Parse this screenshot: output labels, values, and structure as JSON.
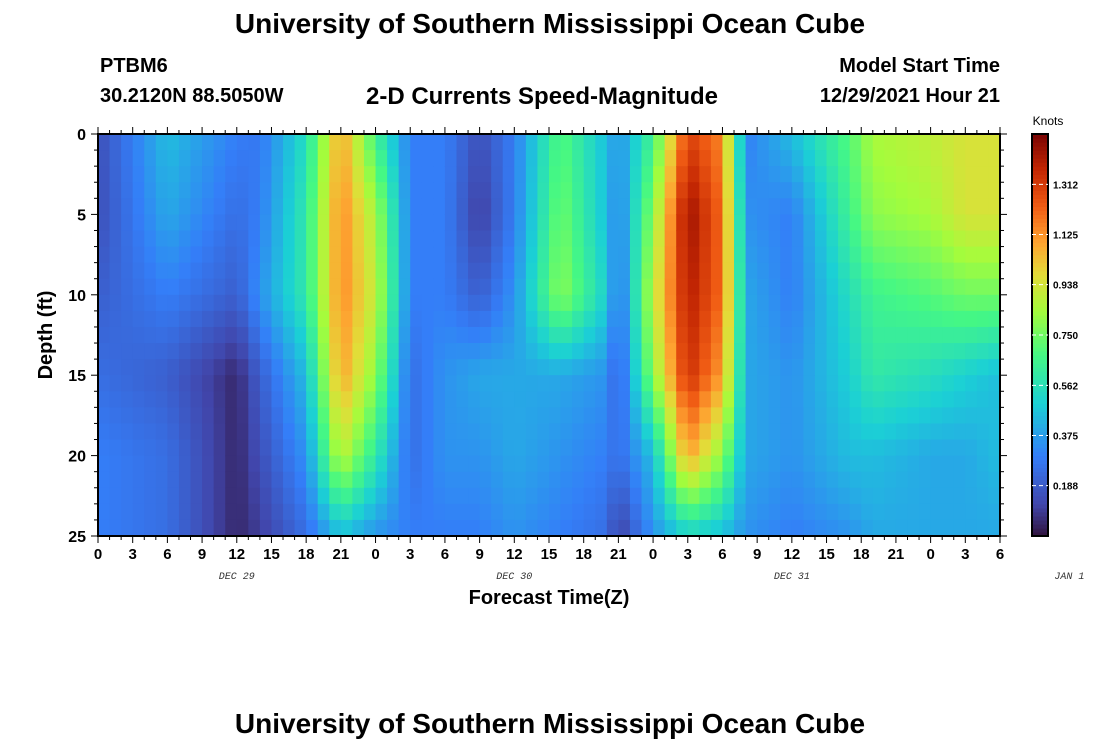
{
  "header": {
    "title": "University of Southern Mississippi Ocean Cube",
    "station": "PTBM6",
    "coords": "30.2120N  88.5050W",
    "subtitle": "2-D Currents Speed-Magnitude",
    "model_start_label": "Model Start Time",
    "model_start_value": "12/29/2021 Hour 21"
  },
  "footer": {
    "title": "University of Southern Mississippi Ocean Cube"
  },
  "chart_data": {
    "type": "heatmap",
    "xlabel": "Forecast Time(Z)",
    "ylabel": "Depth (ft)",
    "x_ticks": [
      "0",
      "3",
      "6",
      "9",
      "12",
      "15",
      "18",
      "21",
      "0",
      "3",
      "6",
      "9",
      "12",
      "15",
      "18",
      "21",
      "0",
      "3",
      "6",
      "9",
      "12",
      "15",
      "18",
      "21",
      "0",
      "3",
      "6"
    ],
    "day_labels": [
      {
        "label": "DEC 29",
        "hour": 12
      },
      {
        "label": "DEC 30",
        "hour": 36
      },
      {
        "label": "DEC 31",
        "hour": 60
      },
      {
        "label": "JAN 1",
        "hour": 84
      }
    ],
    "xlim_hours": [
      0,
      78
    ],
    "y_ticks": [
      "0",
      "5",
      "10",
      "15",
      "20",
      "25"
    ],
    "ylim_ft": [
      0,
      25
    ],
    "colorbar": {
      "label": "Knots",
      "ticks": [
        "1.312",
        "1.125",
        "0.938",
        "0.750",
        "0.562",
        "0.375",
        "0.188"
      ],
      "range": [
        0,
        1.5
      ]
    },
    "grid": false,
    "depth_ft": [
      0,
      5,
      10,
      15,
      20,
      25
    ],
    "time_hours": [
      0,
      6,
      12,
      14,
      18,
      21,
      24,
      27,
      30,
      33,
      36,
      40,
      44,
      45,
      48,
      51,
      54,
      56,
      60,
      65,
      67,
      72,
      75,
      78
    ],
    "speed_knots": [
      [
        0.15,
        0.45,
        0.3,
        0.28,
        0.55,
        1.1,
        0.65,
        0.3,
        0.3,
        0.15,
        0.3,
        0.7,
        0.45,
        0.35,
        0.65,
        1.3,
        1.15,
        0.3,
        0.45,
        0.7,
        0.85,
        0.9,
        0.95,
        0.95
      ],
      [
        0.15,
        0.4,
        0.25,
        0.3,
        0.6,
        1.15,
        0.85,
        0.3,
        0.3,
        0.1,
        0.3,
        0.75,
        0.45,
        0.3,
        0.8,
        1.45,
        1.2,
        0.35,
        0.3,
        0.65,
        0.8,
        0.85,
        0.95,
        0.95
      ],
      [
        0.2,
        0.3,
        0.2,
        0.35,
        0.6,
        1.15,
        0.9,
        0.3,
        0.3,
        0.2,
        0.35,
        0.8,
        0.5,
        0.25,
        0.9,
        1.4,
        1.2,
        0.4,
        0.3,
        0.55,
        0.65,
        0.7,
        0.75,
        0.75
      ],
      [
        0.25,
        0.2,
        0.05,
        0.2,
        0.45,
        1.1,
        0.8,
        0.25,
        0.35,
        0.4,
        0.4,
        0.4,
        0.35,
        0.2,
        0.8,
        1.35,
        1.1,
        0.4,
        0.35,
        0.5,
        0.6,
        0.55,
        0.5,
        0.45
      ],
      [
        0.3,
        0.25,
        0.05,
        0.15,
        0.35,
        0.9,
        0.6,
        0.25,
        0.35,
        0.35,
        0.4,
        0.35,
        0.3,
        0.25,
        0.45,
        1.1,
        0.8,
        0.4,
        0.35,
        0.45,
        0.45,
        0.4,
        0.4,
        0.45
      ],
      [
        0.3,
        0.25,
        0.05,
        0.1,
        0.25,
        0.45,
        0.35,
        0.3,
        0.3,
        0.3,
        0.35,
        0.3,
        0.25,
        0.1,
        0.35,
        0.5,
        0.45,
        0.35,
        0.3,
        0.35,
        0.4,
        0.4,
        0.4,
        0.4
      ]
    ]
  }
}
